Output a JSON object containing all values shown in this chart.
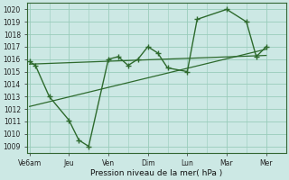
{
  "xlabel": "Pression niveau de la mer( hPa )",
  "bg_color": "#cce8e4",
  "grid_color": "#99ccbb",
  "line_color": "#2d6a2d",
  "ylim": [
    1008.5,
    1020.5
  ],
  "yticks": [
    1009,
    1010,
    1011,
    1012,
    1013,
    1014,
    1015,
    1016,
    1017,
    1018,
    1019,
    1020
  ],
  "x_labels": [
    "Ve6am",
    "Jeu",
    "Ven",
    "Dim",
    "Lun",
    "Mar",
    "Mer"
  ],
  "x_tick_positions": [
    0,
    1,
    2,
    3,
    4,
    5,
    6
  ],
  "xlim": [
    -0.05,
    6.5
  ],
  "main_x": [
    0,
    0.15,
    0.5,
    1.0,
    1.25,
    1.5,
    2.0,
    2.25,
    2.5,
    2.75,
    3.0,
    3.25,
    3.5,
    4.0,
    4.25,
    5.0,
    5.5,
    5.75,
    6.0
  ],
  "main_y": [
    1015.8,
    1015.5,
    1013.0,
    1011.1,
    1009.5,
    1009.0,
    1016.0,
    1016.2,
    1015.5,
    1016.0,
    1017.0,
    1016.5,
    1015.3,
    1015.0,
    1019.2,
    1020.0,
    1019.0,
    1016.2,
    1017.0
  ],
  "trend1_x": [
    0,
    6
  ],
  "trend1_y": [
    1015.6,
    1016.3
  ],
  "trend2_x": [
    0,
    6
  ],
  "trend2_y": [
    1012.2,
    1016.8
  ],
  "minor_x_positions": [
    0.5,
    1.5,
    2.5,
    3.5,
    4.5,
    5.5
  ]
}
